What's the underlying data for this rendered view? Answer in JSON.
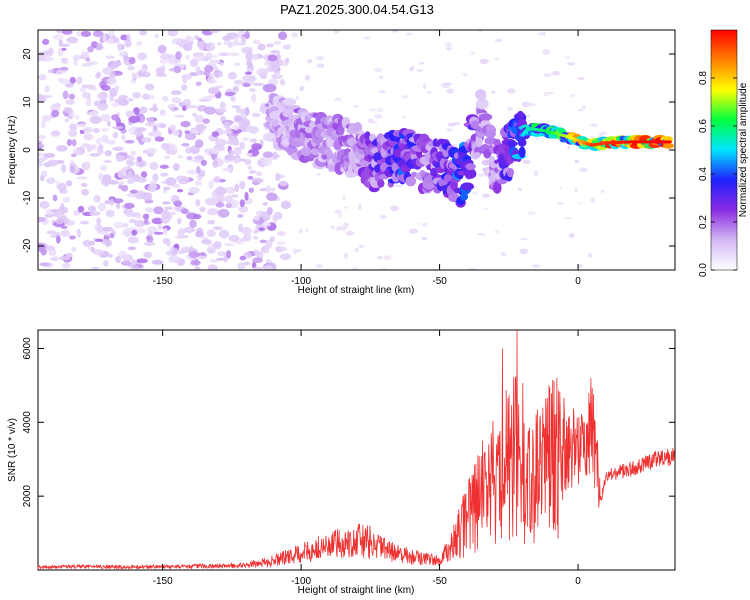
{
  "title": "PAZ1.2025.300.04.54.G13",
  "chart_data": [
    {
      "type": "heatmap",
      "xlabel": "Height of straight line (km)",
      "ylabel": "Frequency (Hz)",
      "xlim": [
        -195,
        35
      ],
      "ylim": [
        -25,
        25
      ],
      "xticks": [
        -150,
        -100,
        -50,
        0
      ],
      "yticks": [
        -20,
        -10,
        0,
        10,
        20
      ],
      "colorbar": {
        "label": "Normalized spectral amplitude",
        "range": [
          0,
          1
        ],
        "ticks": [
          "0.0",
          "0.2",
          "0.4",
          "0.6",
          "0.8"
        ],
        "colors": [
          "#ffffff",
          "#d4b8f5",
          "#8a2be2",
          "#2020ff",
          "#00e5ff",
          "#00ff40",
          "#ffff00",
          "#ff8000",
          "#ff0000"
        ]
      },
      "dominant_signal": [
        {
          "x": -112,
          "freq": 8,
          "amp": 0.15
        },
        {
          "x": -100,
          "freq": 3,
          "amp": 0.2
        },
        {
          "x": -90,
          "freq": 2,
          "amp": 0.2
        },
        {
          "x": -80,
          "freq": 0,
          "amp": 0.2
        },
        {
          "x": -73,
          "freq": -3,
          "amp": 0.3
        },
        {
          "x": -63,
          "freq": -1,
          "amp": 0.4
        },
        {
          "x": -55,
          "freq": -3,
          "amp": 0.25
        },
        {
          "x": -47,
          "freq": -4,
          "amp": 0.35
        },
        {
          "x": -42,
          "freq": -6,
          "amp": 0.45
        },
        {
          "x": -35,
          "freq": 7,
          "amp": 0.2
        },
        {
          "x": -30,
          "freq": -4,
          "amp": 0.2
        },
        {
          "x": -18,
          "freq": 4.5,
          "amp": 0.55
        },
        {
          "x": -12,
          "freq": 4,
          "amp": 0.6
        },
        {
          "x": -5,
          "freq": 3,
          "amp": 0.7
        },
        {
          "x": 0,
          "freq": 2,
          "amp": 0.8
        },
        {
          "x": 5,
          "freq": 1,
          "amp": 0.95
        },
        {
          "x": 10,
          "freq": 1.5,
          "amp": 0.95
        },
        {
          "x": 20,
          "freq": 1.7,
          "amp": 1.0
        },
        {
          "x": 33,
          "freq": 1.7,
          "amp": 1.0
        }
      ]
    },
    {
      "type": "line",
      "xlabel": "Height of straight line (km)",
      "ylabel": "SNR (10 * v/v)",
      "xlim": [
        -195,
        35
      ],
      "ylim": [
        0,
        6500
      ],
      "xticks": [
        -150,
        -100,
        -50,
        0
      ],
      "yticks": [
        2000,
        4000,
        6000
      ],
      "series": [
        {
          "color": "#ee3030",
          "x": [
            -195,
            -180,
            -160,
            -140,
            -120,
            -110,
            -100,
            -90,
            -80,
            -75,
            -70,
            -60,
            -50,
            -45,
            -40,
            -35,
            -30,
            -25,
            -22,
            -20,
            -15,
            -10,
            -5,
            0,
            5,
            7,
            8,
            10,
            15,
            20,
            25,
            30,
            35
          ],
          "y": [
            80,
            90,
            80,
            100,
            120,
            250,
            450,
            650,
            800,
            750,
            550,
            350,
            250,
            700,
            1400,
            2000,
            2400,
            3000,
            3200,
            2300,
            2500,
            2900,
            3200,
            3400,
            3900,
            2800,
            1800,
            2500,
            2650,
            2750,
            2900,
            3050,
            3100
          ]
        }
      ]
    }
  ]
}
